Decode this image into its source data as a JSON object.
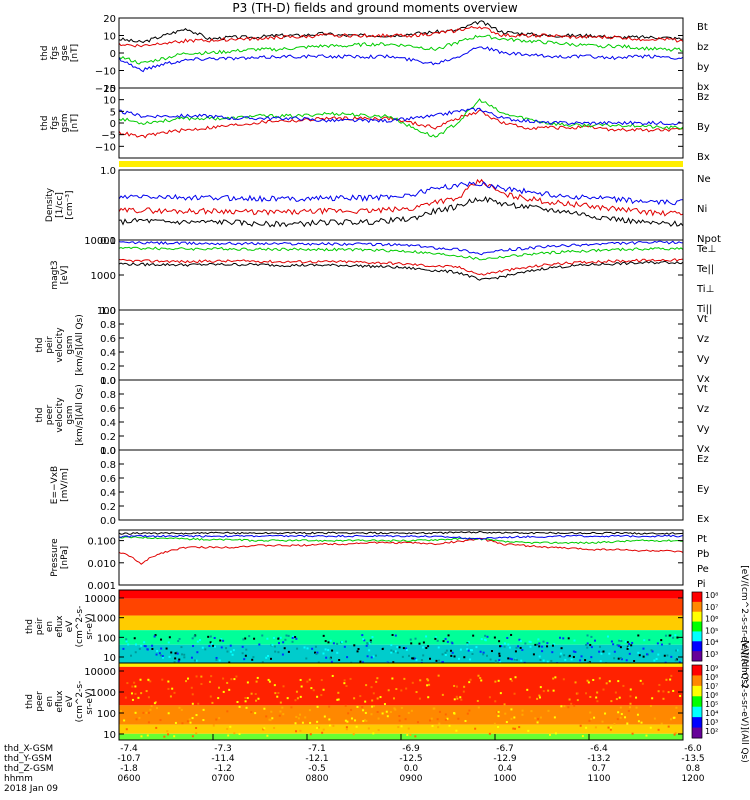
{
  "title": "P3 (TH-D) fields and ground moments overview",
  "colors": {
    "black": "#000000",
    "red": "#e00000",
    "green": "#00cc00",
    "blue": "#0000ee",
    "yellow": "#ffee00"
  },
  "chart_data": [
    {
      "type": "line",
      "ylabel": [
        "thd",
        "fgs",
        "gse",
        "[nT]"
      ],
      "ylim": [
        -20,
        20
      ],
      "yticks": [
        "20",
        "10",
        "0",
        "−10",
        "−20"
      ],
      "series": [
        {
          "name": "Bt",
          "color": "black",
          "values": [
            8,
            6,
            10,
            14,
            8,
            9,
            9,
            10,
            10,
            11,
            10,
            10,
            10,
            11,
            12,
            13,
            18,
            12,
            11,
            10,
            10,
            10,
            9,
            9,
            9,
            8
          ]
        },
        {
          "name": "bz",
          "color": "red",
          "values": [
            5,
            4,
            6,
            7,
            7,
            8,
            8,
            9,
            9,
            10,
            10,
            10,
            10,
            10,
            11,
            13,
            15,
            10,
            10,
            10,
            9,
            9,
            9,
            8,
            8,
            7
          ]
        },
        {
          "name": "by",
          "color": "green",
          "values": [
            -2,
            -6,
            -3,
            0,
            0,
            1,
            2,
            2,
            3,
            4,
            4,
            5,
            5,
            4,
            2,
            6,
            10,
            8,
            7,
            6,
            5,
            4,
            4,
            3,
            2,
            2
          ]
        },
        {
          "name": "bx",
          "color": "blue",
          "values": [
            -3,
            -10,
            -6,
            -4,
            -3,
            -3,
            -3,
            -2,
            -2,
            -2,
            -2,
            -2,
            -2,
            -4,
            -6,
            -2,
            4,
            0,
            -1,
            -2,
            -2,
            -2,
            -3,
            -2,
            -2,
            -3
          ]
        }
      ]
    },
    {
      "type": "line",
      "ylabel": [
        "thd",
        "fgs",
        "gsm",
        "[nT]"
      ],
      "ylim": [
        -15,
        15
      ],
      "yticks": [
        "15",
        "10",
        "5",
        "0",
        "−5",
        "−10"
      ],
      "series": [
        {
          "name": "Bz",
          "color": "red",
          "values": [
            -4,
            -6,
            -4,
            -3,
            -2,
            -1,
            0,
            1,
            1,
            2,
            2,
            2,
            2,
            0,
            -2,
            2,
            5,
            0,
            -2,
            -2,
            -2,
            -2,
            -3,
            -3,
            -3,
            -3
          ]
        },
        {
          "name": "By",
          "color": "green",
          "values": [
            2,
            0,
            1,
            2,
            2,
            2,
            3,
            3,
            3,
            4,
            4,
            3,
            3,
            -2,
            -6,
            0,
            10,
            4,
            2,
            0,
            -1,
            -1,
            -1,
            -1,
            -2,
            -2
          ]
        },
        {
          "name": "Bx",
          "color": "blue",
          "values": [
            5,
            3,
            3,
            3,
            3,
            2,
            2,
            2,
            2,
            1,
            1,
            1,
            1,
            2,
            3,
            5,
            6,
            2,
            1,
            0,
            0,
            0,
            0,
            0,
            0,
            0
          ]
        }
      ]
    },
    {
      "type": "line",
      "scale": "log",
      "ylabel": [
        "Density",
        "[1/cc]",
        "[cm⁻³]"
      ],
      "ylim": [
        0.1,
        1.0
      ],
      "yticks": [
        "1.0",
        "0.1"
      ],
      "series": [
        {
          "name": "Ne",
          "color": "red",
          "values": [
            0.26,
            0.27,
            0.26,
            0.26,
            0.26,
            0.26,
            0.25,
            0.25,
            0.25,
            0.26,
            0.26,
            0.26,
            0.27,
            0.28,
            0.36,
            0.38,
            0.7,
            0.45,
            0.4,
            0.35,
            0.33,
            0.3,
            0.28,
            0.26,
            0.24,
            0.24
          ]
        },
        {
          "name": "Ni",
          "color": "black",
          "values": [
            0.18,
            0.19,
            0.18,
            0.18,
            0.18,
            0.18,
            0.17,
            0.17,
            0.17,
            0.18,
            0.18,
            0.18,
            0.19,
            0.2,
            0.26,
            0.3,
            0.4,
            0.33,
            0.3,
            0.27,
            0.25,
            0.22,
            0.2,
            0.18,
            0.17,
            0.17
          ]
        },
        {
          "name": "Npot",
          "color": "blue",
          "values": [
            0.4,
            0.42,
            0.41,
            0.4,
            0.4,
            0.4,
            0.39,
            0.39,
            0.39,
            0.4,
            0.4,
            0.4,
            0.42,
            0.44,
            0.55,
            0.6,
            0.65,
            0.55,
            0.5,
            0.45,
            0.42,
            0.4,
            0.38,
            0.36,
            0.34,
            0.35
          ]
        }
      ]
    },
    {
      "type": "line",
      "scale": "log",
      "ylabel": [
        "magt3",
        "[eV]"
      ],
      "ylim": [
        100,
        10000
      ],
      "yticks": [
        "10000",
        "1000",
        "100"
      ],
      "series": [
        {
          "name": "Te⊥",
          "color": "red",
          "values": [
            2600,
            2500,
            2500,
            2400,
            2500,
            2500,
            2500,
            2400,
            2400,
            2400,
            2400,
            2300,
            2200,
            2000,
            1800,
            1700,
            1000,
            1300,
            1600,
            2000,
            2200,
            2400,
            2500,
            2600,
            2700,
            2700
          ]
        },
        {
          "name": "Te||",
          "color": "black",
          "values": [
            2100,
            2000,
            2000,
            1950,
            2000,
            2000,
            2000,
            1900,
            1900,
            1900,
            1900,
            1800,
            1700,
            1550,
            1350,
            1200,
            700,
            900,
            1200,
            1600,
            1800,
            2000,
            2100,
            2200,
            2300,
            2300
          ]
        },
        {
          "name": "Ti⊥",
          "color": "blue",
          "values": [
            8500,
            8300,
            8200,
            8000,
            8000,
            8000,
            7900,
            7900,
            7800,
            7800,
            7700,
            7600,
            7400,
            7000,
            6000,
            5500,
            4000,
            5000,
            5800,
            6500,
            7000,
            7500,
            8000,
            8300,
            8500,
            8500
          ]
        },
        {
          "name": "Ti||",
          "color": "green",
          "values": [
            6000,
            5800,
            5700,
            5600,
            5600,
            5600,
            5500,
            5500,
            5400,
            5400,
            5300,
            5200,
            5000,
            4700,
            4000,
            3600,
            2800,
            3300,
            3800,
            4300,
            4700,
            5000,
            5300,
            5500,
            5700,
            5700
          ]
        }
      ]
    },
    {
      "type": "line",
      "ylabel": [
        "thd",
        "peir",
        "velocity",
        "gsm",
        "[km/s](All Qs)"
      ],
      "ylim": [
        0,
        1.0
      ],
      "yticks": [
        "1.0",
        "0.8",
        "0.6",
        "0.4",
        "0.2",
        "0.0"
      ],
      "series": [
        {
          "name": "Vt",
          "color": "black",
          "values": []
        },
        {
          "name": "Vz",
          "color": "red",
          "values": []
        },
        {
          "name": "Vy",
          "color": "green",
          "values": []
        },
        {
          "name": "Vx",
          "color": "blue",
          "values": []
        }
      ]
    },
    {
      "type": "line",
      "ylabel": [
        "thd",
        "peer",
        "velocity",
        "gsm",
        "[km/s](All Qs)"
      ],
      "ylim": [
        0,
        1.0
      ],
      "yticks": [
        "1.0",
        "0.8",
        "0.6",
        "0.4",
        "0.2",
        "0.0"
      ],
      "series": [
        {
          "name": "Vt",
          "color": "black",
          "values": []
        },
        {
          "name": "Vz",
          "color": "red",
          "values": []
        },
        {
          "name": "Vy",
          "color": "green",
          "values": []
        },
        {
          "name": "Vx",
          "color": "blue",
          "values": []
        }
      ]
    },
    {
      "type": "line",
      "ylabel": [
        "E=−VxB",
        "[mV/m]"
      ],
      "ylim": [
        0,
        1.0
      ],
      "yticks": [
        "1.0",
        "0.8",
        "0.6",
        "0.4",
        "0.2",
        "0.0"
      ],
      "series": [
        {
          "name": "Ez",
          "color": "red",
          "values": []
        },
        {
          "name": "Ey",
          "color": "green",
          "values": []
        },
        {
          "name": "Ex",
          "color": "blue",
          "values": []
        }
      ]
    },
    {
      "type": "line",
      "scale": "log",
      "ylabel": [
        "Pressure",
        "[nPa]"
      ],
      "ylim": [
        0.001,
        0.3
      ],
      "yticks": [
        "0.100",
        "0.010",
        "0.001"
      ],
      "series": [
        {
          "name": "Pt",
          "color": "black",
          "values": [
            0.2,
            0.22,
            0.21,
            0.21,
            0.22,
            0.22,
            0.22,
            0.22,
            0.22,
            0.22,
            0.22,
            0.22,
            0.22,
            0.22,
            0.22,
            0.23,
            0.24,
            0.23,
            0.22,
            0.22,
            0.22,
            0.22,
            0.22,
            0.21,
            0.21,
            0.21
          ]
        },
        {
          "name": "Pb",
          "color": "red",
          "values": [
            0.03,
            0.008,
            0.03,
            0.05,
            0.05,
            0.05,
            0.06,
            0.06,
            0.06,
            0.07,
            0.07,
            0.08,
            0.08,
            0.08,
            0.07,
            0.09,
            0.12,
            0.07,
            0.06,
            0.05,
            0.045,
            0.04,
            0.04,
            0.035,
            0.035,
            0.03
          ]
        },
        {
          "name": "Pe",
          "color": "green",
          "values": [
            0.14,
            0.14,
            0.13,
            0.12,
            0.11,
            0.11,
            0.1,
            0.1,
            0.1,
            0.1,
            0.1,
            0.1,
            0.1,
            0.1,
            0.11,
            0.12,
            0.12,
            0.09,
            0.08,
            0.08,
            0.08,
            0.08,
            0.09,
            0.1,
            0.1,
            0.1
          ]
        },
        {
          "name": "Pi",
          "color": "blue",
          "values": [
            0.15,
            0.16,
            0.16,
            0.16,
            0.16,
            0.16,
            0.16,
            0.16,
            0.16,
            0.16,
            0.16,
            0.16,
            0.16,
            0.16,
            0.15,
            0.14,
            0.12,
            0.14,
            0.15,
            0.15,
            0.16,
            0.16,
            0.16,
            0.16,
            0.16,
            0.16
          ]
        }
      ]
    },
    {
      "type": "heatmap",
      "ylabel": [
        "thd",
        "peir",
        "en",
        "eflux",
        "eV",
        "(cm^2-s-",
        "sr-eV)"
      ],
      "yticks": [
        "10000",
        "1000",
        "100",
        "10"
      ],
      "colorbar_label": "[eV/(cm^2-s-sr-eV)](All Qs)",
      "colorbar_ticks": [
        "10⁸",
        "10⁷",
        "10⁶",
        "10⁵",
        "10⁴",
        "10³"
      ]
    },
    {
      "type": "heatmap",
      "ylabel": [
        "thd",
        "peer",
        "en",
        "eflux",
        "eV",
        "(cm^2-s-",
        "sr-eV)"
      ],
      "yticks": [
        "10000",
        "1000",
        "100",
        "10"
      ],
      "colorbar_label": "[eV/(cm^2-s-sr-eV)](All Qs)",
      "colorbar_ticks": [
        "10⁹",
        "10⁸",
        "10⁷",
        "10⁶",
        "10⁵",
        "10⁴",
        "10³",
        "10²"
      ]
    }
  ],
  "xaxis": {
    "rows": [
      {
        "label": "thd_X-GSM",
        "values": [
          "-7.4",
          "-7.3",
          "-7.1",
          "-6.9",
          "-6.7",
          "-6.4",
          "-6.0"
        ]
      },
      {
        "label": "thd_Y-GSM",
        "values": [
          "-10.7",
          "-11.4",
          "-12.1",
          "-12.5",
          "-12.9",
          "-13.2",
          "-13.5"
        ]
      },
      {
        "label": "thd_Z-GSM",
        "values": [
          "-1.8",
          "-1.2",
          "-0.5",
          "0.0",
          "0.4",
          "0.7",
          "0.8"
        ]
      },
      {
        "label": "hhmm",
        "values": [
          "0600",
          "0700",
          "0800",
          "0900",
          "1000",
          "1100",
          "1200"
        ]
      }
    ],
    "date": "2018 Jan 09"
  }
}
